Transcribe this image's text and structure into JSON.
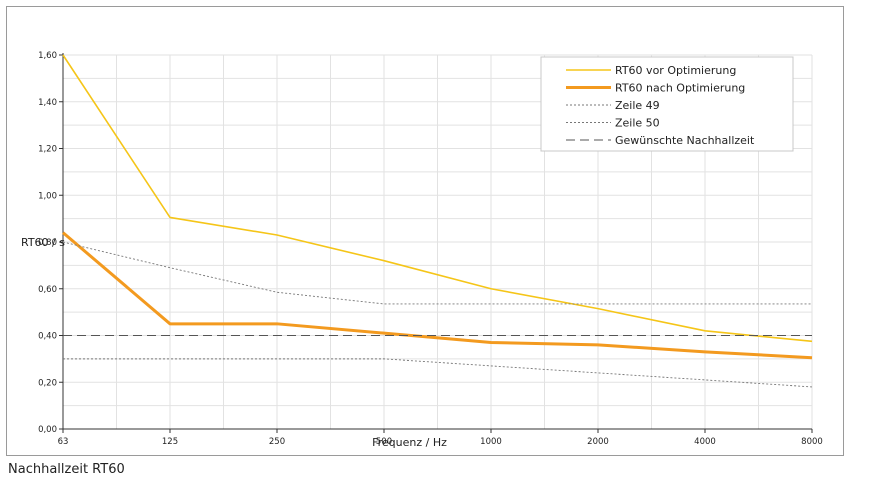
{
  "caption": "Nachhallzeit RT60",
  "chart_data": {
    "type": "line",
    "xlabel": "Frequenz / Hz",
    "ylabel": "RT60 / s",
    "categories": [
      "63",
      "125",
      "250",
      "500",
      "1000",
      "2000",
      "4000",
      "8000"
    ],
    "ylim": [
      0,
      1.6
    ],
    "yticks": [
      "0,00",
      "0,20",
      "0,40",
      "0,60",
      "0,80",
      "1,00",
      "1,20",
      "1,40",
      "1,60"
    ],
    "grid": true,
    "legend_position": "top-right",
    "series": [
      {
        "name": "RT60 vor Optimierung",
        "values": [
          1.6,
          0.905,
          0.83,
          0.72,
          0.6,
          0.515,
          0.42,
          0.375
        ],
        "color": "#f5c518",
        "style": "solid"
      },
      {
        "name": "RT60 nach Optimierung",
        "values": [
          0.84,
          0.45,
          0.45,
          0.41,
          0.37,
          0.36,
          0.33,
          0.305
        ],
        "color": "#f39a1f",
        "style": "solid-thick"
      },
      {
        "name": "Zeile 49",
        "values": [
          0.8,
          0.69,
          0.585,
          0.535,
          0.535,
          0.535,
          0.535,
          0.535
        ],
        "color": "#777777",
        "style": "dotted"
      },
      {
        "name": "Zeile 50",
        "values": [
          0.3,
          0.3,
          0.3,
          0.3,
          0.27,
          0.24,
          0.21,
          0.18
        ],
        "color": "#777777",
        "style": "dotted"
      },
      {
        "name": "Gewünschte Nachhallzeit",
        "values": [
          0.4,
          0.4,
          0.4,
          0.4,
          0.4,
          0.4,
          0.4,
          0.4
        ],
        "color": "#555555",
        "style": "dashed"
      }
    ]
  }
}
